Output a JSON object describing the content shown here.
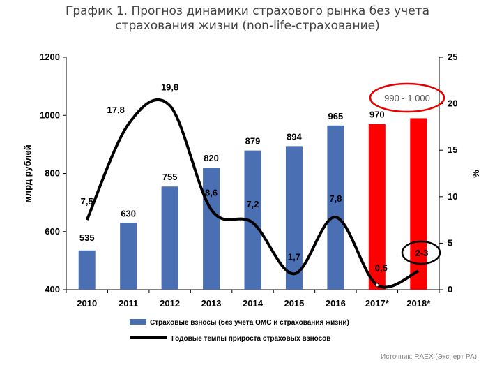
{
  "title": {
    "line1": "График 1. Прогноз динамики страхового рынка без учета",
    "line2": "страхования жизни (non-life-страхование)"
  },
  "source": "Источник: RAEX (Эксперт РА)",
  "callouts": {
    "range_2018_bar": "990 - 1 000",
    "range_2018_growth": "2-3"
  },
  "colors": {
    "bar_actual": "#4a6fb2",
    "bar_forecast": "#ff0000",
    "growth_line": "#000000",
    "callout_ellipse": "#e60000"
  },
  "chart_data": {
    "type": "bar",
    "categories": [
      "2010",
      "2011",
      "2012",
      "2013",
      "2014",
      "2015",
      "2016",
      "2017*",
      "2018*"
    ],
    "ylabel": "млрд рублей",
    "y2label": "%",
    "ylim": [
      400,
      1200
    ],
    "yticks": [
      "400",
      "600",
      "800",
      "1000",
      "1200"
    ],
    "y2lim": [
      0,
      25
    ],
    "y2ticks": [
      "0",
      "5",
      "10",
      "15",
      "20",
      "25"
    ],
    "series": [
      {
        "name": "Страховые взносы (без учета ОМС и страхования жизни)",
        "axis": "left",
        "kind": "bar",
        "values": [
          535,
          630,
          755,
          820,
          879,
          894,
          965,
          970,
          990
        ],
        "labels": [
          "535",
          "630",
          "755",
          "820",
          "879",
          "894",
          "965",
          "970",
          ""
        ],
        "forecast": [
          false,
          false,
          false,
          false,
          false,
          false,
          false,
          true,
          true
        ]
      },
      {
        "name": "Годовые темпы прироста страховых взносов",
        "axis": "right",
        "kind": "line",
        "values": [
          7.5,
          17.8,
          19.8,
          8.6,
          7.2,
          1.7,
          7.8,
          0.5,
          2.0
        ],
        "labels": [
          "7,5",
          "17,8",
          "19,8",
          "8,6",
          "7,2",
          "1,7",
          "7,8",
          "0,5",
          ""
        ]
      }
    ]
  }
}
